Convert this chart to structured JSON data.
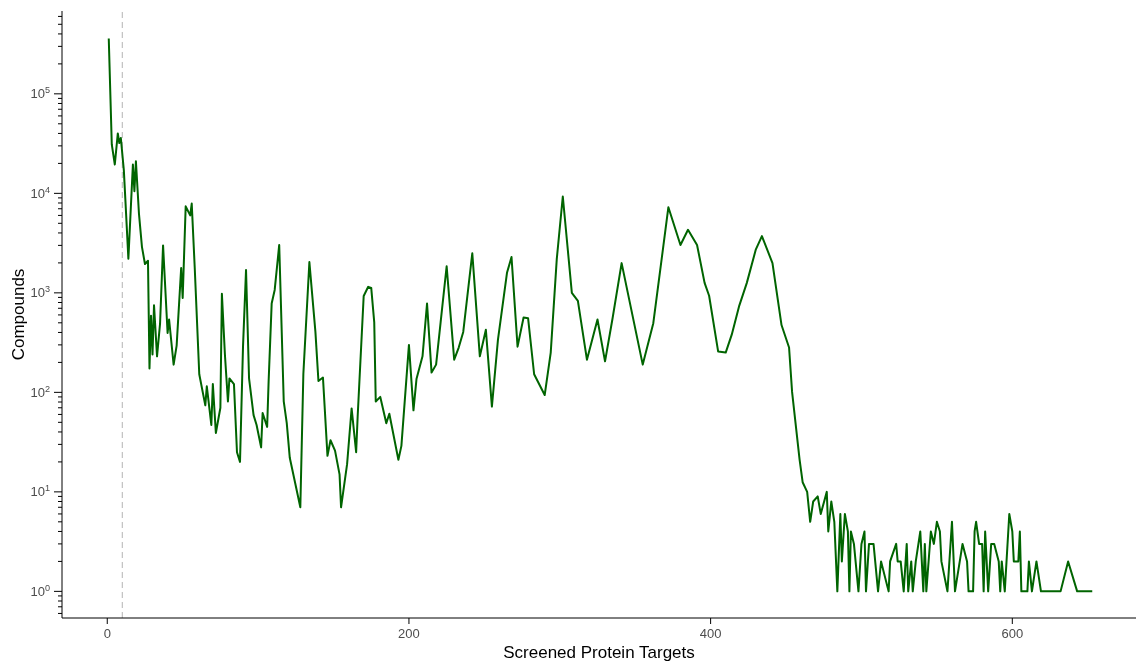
{
  "chart_data": {
    "type": "line",
    "xlabel": "Screened Protein Targets",
    "ylabel": "Compounds",
    "log": "y",
    "color": "#006400",
    "x": [
      1,
      3,
      5,
      7,
      8,
      9,
      11,
      12,
      14,
      17,
      18,
      19,
      21,
      23,
      25,
      27,
      28,
      29,
      30,
      31,
      33,
      35,
      37,
      40,
      41,
      44,
      46,
      49,
      50,
      52,
      55,
      56,
      58,
      61,
      65,
      66,
      69,
      70,
      72,
      75,
      76,
      78,
      80,
      81,
      84,
      86,
      88,
      90,
      92,
      94,
      97,
      99,
      102,
      103,
      106,
      107,
      109,
      111,
      114,
      117,
      119,
      121,
      128,
      130,
      134,
      138,
      140,
      143,
      146,
      148,
      151,
      154,
      155,
      159,
      162,
      165,
      166,
      170,
      173,
      175,
      177,
      178,
      181,
      185,
      187,
      193,
      195,
      200,
      203,
      205,
      209,
      212,
      215,
      218,
      221,
      225,
      230,
      233,
      236,
      242,
      247,
      251,
      255,
      259,
      265,
      268,
      272,
      276,
      279,
      283,
      290,
      294,
      298,
      302,
      308,
      312,
      318,
      325,
      330,
      335,
      341,
      355,
      362,
      372,
      380,
      385,
      391,
      396,
      399,
      405,
      410,
      414,
      419,
      424,
      430,
      434,
      441,
      447,
      452,
      454,
      459,
      461,
      464,
      466,
      468,
      471,
      473,
      477,
      478,
      480,
      482,
      484,
      486,
      487,
      489,
      491,
      492,
      493,
      495,
      498,
      500,
      502,
      503,
      505,
      508,
      511,
      513,
      518,
      519,
      523,
      524,
      526,
      528,
      530,
      531,
      533,
      534,
      536,
      539,
      541,
      542,
      543,
      546,
      548,
      550,
      552,
      553,
      557,
      560,
      562,
      567,
      570,
      571,
      574,
      575,
      576,
      578,
      580,
      581,
      582,
      584,
      586,
      588,
      591,
      592,
      593,
      595,
      598,
      600,
      601,
      604,
      605,
      606,
      610,
      611,
      613,
      616,
      619,
      632,
      637,
      643,
      653
    ],
    "values": [
      360000,
      31000,
      19500,
      40000,
      32000,
      36000,
      17000,
      8700,
      2200,
      19500,
      10500,
      21000,
      6300,
      2900,
      1950,
      2100,
      174,
      590,
      240,
      750,
      230,
      490,
      3000,
      395,
      540,
      190,
      295,
      1780,
      890,
      7400,
      6000,
      7900,
      1780,
      152,
      74,
      115,
      47,
      121,
      39,
      70,
      980,
      240,
      81,
      138,
      121,
      25,
      20,
      288,
      1700,
      138,
      59,
      47,
      28,
      62,
      45,
      132,
      780,
      1070,
      3030,
      81,
      49,
      22,
      7,
      152,
      2040,
      405,
      130,
      141,
      23,
      33,
      26,
      15,
      7,
      19,
      69,
      25,
      57,
      930,
      1150,
      1120,
      505,
      81,
      90,
      49,
      61,
      21,
      29,
      300,
      66,
      136,
      230,
      780,
      158,
      190,
      505,
      1850,
      213,
      282,
      405,
      2500,
      230,
      425,
      72,
      337,
      1590,
      2290,
      288,
      565,
      555,
      152,
      94,
      251,
      2180,
      9300,
      1000,
      830,
      213,
      540,
      205,
      555,
      1990,
      190,
      495,
      7250,
      3030,
      4300,
      3030,
      1260,
      935,
      257,
      251,
      380,
      745,
      1260,
      2740,
      3720,
      1990,
      475,
      282,
      101,
      21,
      12.5,
      10,
      5,
      8,
      9,
      6,
      10,
      4,
      8,
      5,
      1,
      6,
      2,
      6,
      4,
      1,
      4,
      3,
      1,
      3,
      4,
      1,
      3,
      3,
      1,
      2,
      1,
      2,
      3,
      2,
      2,
      1,
      3,
      1,
      2,
      1,
      2,
      4,
      1,
      3,
      1,
      4,
      3,
      5,
      4,
      2,
      1,
      5,
      1,
      3,
      2,
      1,
      1,
      4,
      5,
      3,
      3,
      1,
      4,
      1,
      3,
      3,
      2,
      1,
      2,
      1,
      6,
      4,
      2,
      2,
      4,
      1,
      1,
      2,
      1,
      2,
      1,
      1,
      2,
      1,
      1
    ],
    "xlim": [
      -30,
      682
    ],
    "xticks": [
      0,
      200,
      400,
      600
    ],
    "ylim": [
      0.54,
      680000
    ],
    "yticks": [
      {
        "value": 0.6,
        "label": null
      },
      {
        "value": 0.7,
        "label": null
      },
      {
        "value": 0.8,
        "label": null
      },
      {
        "value": 0.9,
        "label": null
      },
      {
        "value": 1,
        "label": "10$^{0}$"
      },
      {
        "value": 2,
        "label": null
      },
      {
        "value": 3,
        "label": null
      },
      {
        "value": 4,
        "label": null
      },
      {
        "value": 5,
        "label": null
      },
      {
        "value": 6,
        "label": null
      },
      {
        "value": 7,
        "label": null
      },
      {
        "value": 8,
        "label": null
      },
      {
        "value": 9,
        "label": null
      },
      {
        "value": 10,
        "label": "10$^{1}$"
      },
      {
        "value": 20,
        "label": null
      },
      {
        "value": 30,
        "label": null
      },
      {
        "value": 40,
        "label": null
      },
      {
        "value": 50,
        "label": null
      },
      {
        "value": 60,
        "label": null
      },
      {
        "value": 70,
        "label": null
      },
      {
        "value": 80,
        "label": null
      },
      {
        "value": 90,
        "label": null
      },
      {
        "value": 100,
        "label": "10$^{2}$"
      },
      {
        "value": 200,
        "label": null
      },
      {
        "value": 300,
        "label": null
      },
      {
        "value": 400,
        "label": null
      },
      {
        "value": 500,
        "label": null
      },
      {
        "value": 600,
        "label": null
      },
      {
        "value": 700,
        "label": null
      },
      {
        "value": 800,
        "label": null
      },
      {
        "value": 900,
        "label": null
      },
      {
        "value": 1000,
        "label": "10$^{3}$"
      },
      {
        "value": 2000,
        "label": null
      },
      {
        "value": 3000,
        "label": null
      },
      {
        "value": 4000,
        "label": null
      },
      {
        "value": 5000,
        "label": null
      },
      {
        "value": 6000,
        "label": null
      },
      {
        "value": 7000,
        "label": null
      },
      {
        "value": 8000,
        "label": null
      },
      {
        "value": 9000,
        "label": null
      },
      {
        "value": 10000,
        "label": "10$^{4}$"
      },
      {
        "value": 20000,
        "label": null
      },
      {
        "value": 30000,
        "label": null
      },
      {
        "value": 40000,
        "label": null
      },
      {
        "value": 50000,
        "label": null
      },
      {
        "value": 60000,
        "label": null
      },
      {
        "value": 70000,
        "label": null
      },
      {
        "value": 80000,
        "label": null
      },
      {
        "value": 90000,
        "label": null
      },
      {
        "value": 100000,
        "label": "10$^{5}$"
      },
      {
        "value": 200000,
        "label": null
      },
      {
        "value": 300000,
        "label": null
      },
      {
        "value": 400000,
        "label": null
      },
      {
        "value": 500000,
        "label": null
      },
      {
        "value": 600000,
        "label": null
      }
    ],
    "ref_lines": [
      {
        "axis": "x",
        "value": 10,
        "color": "#c0c0c0",
        "line_style": "dashed"
      }
    ]
  }
}
